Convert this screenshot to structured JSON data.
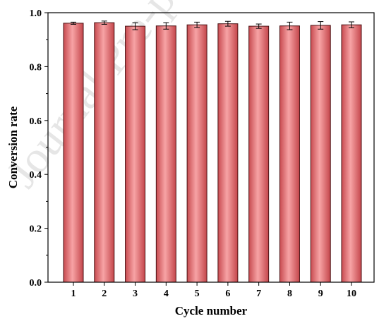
{
  "chart_data": {
    "type": "bar",
    "categories": [
      "1",
      "2",
      "3",
      "4",
      "5",
      "6",
      "7",
      "8",
      "9",
      "10"
    ],
    "values": [
      0.961,
      0.963,
      0.95,
      0.951,
      0.955,
      0.959,
      0.95,
      0.951,
      0.953,
      0.955
    ],
    "errors": [
      0.004,
      0.006,
      0.013,
      0.012,
      0.01,
      0.009,
      0.008,
      0.014,
      0.014,
      0.011
    ],
    "xlabel": "Cycle number",
    "ylabel": "Conversion rate",
    "ylim": [
      0,
      1.0
    ],
    "yticks": [
      "0.0",
      "0.2",
      "0.4",
      "0.6",
      "0.8",
      "1.0"
    ],
    "grid": false,
    "legend": "none",
    "bar_color": "#e46f72",
    "bar_highlight": "#f9a6a7",
    "bar_edge": "#4a1214",
    "watermark": "Journal Pre-proof"
  }
}
